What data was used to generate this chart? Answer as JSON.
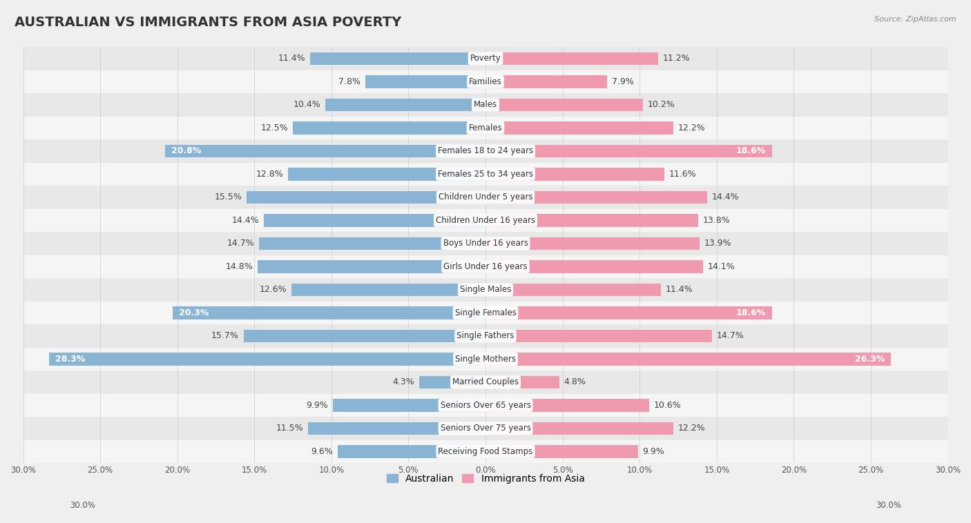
{
  "title": "AUSTRALIAN VS IMMIGRANTS FROM ASIA POVERTY",
  "source": "Source: ZipAtlas.com",
  "categories": [
    "Poverty",
    "Families",
    "Males",
    "Females",
    "Females 18 to 24 years",
    "Females 25 to 34 years",
    "Children Under 5 years",
    "Children Under 16 years",
    "Boys Under 16 years",
    "Girls Under 16 years",
    "Single Males",
    "Single Females",
    "Single Fathers",
    "Single Mothers",
    "Married Couples",
    "Seniors Over 65 years",
    "Seniors Over 75 years",
    "Receiving Food Stamps"
  ],
  "australian": [
    11.4,
    7.8,
    10.4,
    12.5,
    20.8,
    12.8,
    15.5,
    14.4,
    14.7,
    14.8,
    12.6,
    20.3,
    15.7,
    28.3,
    4.3,
    9.9,
    11.5,
    9.6
  ],
  "immigrants": [
    11.2,
    7.9,
    10.2,
    12.2,
    18.6,
    11.6,
    14.4,
    13.8,
    13.9,
    14.1,
    11.4,
    18.6,
    14.7,
    26.3,
    4.8,
    10.6,
    12.2,
    9.9
  ],
  "australian_color": "#8ab4d4",
  "immigrants_color": "#f09ab0",
  "background_color": "#efefef",
  "row_color_odd": "#e8e8e8",
  "row_color_even": "#f5f5f5",
  "axis_max": 30.0,
  "bar_height": 0.55,
  "title_fontsize": 14,
  "value_fontsize": 9,
  "category_fontsize": 8.5,
  "source_fontsize": 8,
  "legend_fontsize": 10,
  "large_val_threshold": 17.0,
  "axis_label_fontsize": 8.5
}
